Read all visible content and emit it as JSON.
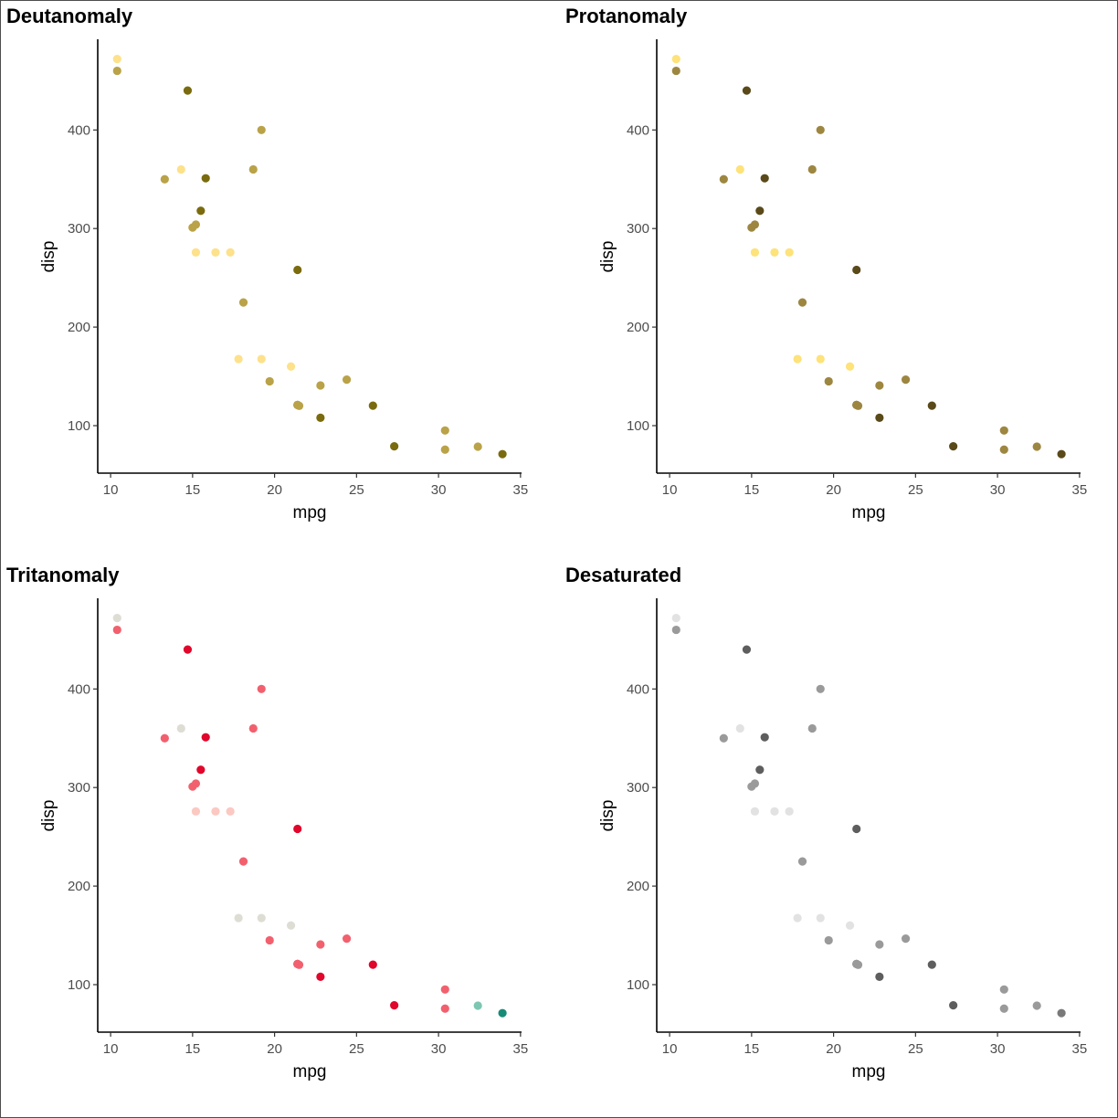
{
  "chart_data": [
    {
      "type": "scatter",
      "title": "Deutanomaly",
      "xlabel": "mpg",
      "ylabel": "disp",
      "xlim": [
        9.26,
        35.04
      ],
      "ylim": [
        50.0,
        491.0
      ],
      "x_ticks": [
        "10",
        "15",
        "20",
        "25",
        "30",
        "35"
      ],
      "y_ticks": [
        "100",
        "200",
        "300",
        "400"
      ],
      "grid": false,
      "legend": "none",
      "colors": [
        "#FDE18B",
        "#B9A248",
        "#7A6B0E",
        "#B9A248",
        "#FDE18B",
        "#7A6B0E",
        "#7A6B0E",
        "#B9A248",
        "#B9A248",
        "#B9A248",
        "#B9A248",
        "#FDE18B",
        "#FDE18B",
        "#FDE18B",
        "#FDE18B",
        "#FDE18B",
        "#FDE18B",
        "#7A6B0E",
        "#B9A248",
        "#7A6B0E",
        "#B9A248",
        "#B9A248",
        "#B9A248",
        "#7A6B0E",
        "#B9A248",
        "#7A6B0E",
        "#B9A248",
        "#B9A248",
        "#7A6B0E",
        "#B9A248",
        "#7A6B0E",
        "#B9A248"
      ]
    },
    {
      "type": "scatter",
      "title": "Protanomaly",
      "xlabel": "mpg",
      "ylabel": "disp",
      "xlim": [
        9.26,
        35.04
      ],
      "ylim": [
        50.0,
        491.0
      ],
      "x_ticks": [
        "10",
        "15",
        "20",
        "25",
        "30",
        "35"
      ],
      "y_ticks": [
        "100",
        "200",
        "300",
        "400"
      ],
      "grid": false,
      "legend": "none",
      "colors": [
        "#FEE27A",
        "#9D8640",
        "#5A4A1A",
        "#9D8640",
        "#FEE27A",
        "#5A4A1A",
        "#5A4A1A",
        "#9D8640",
        "#9D8640",
        "#9D8640",
        "#9D8640",
        "#FEE27A",
        "#FEE27A",
        "#FEE27A",
        "#FEE27A",
        "#FEE27A",
        "#FEE27A",
        "#5A4A1A",
        "#9D8640",
        "#5A4A1A",
        "#9D8640",
        "#9D8640",
        "#9D8640",
        "#5A4A1A",
        "#9D8640",
        "#5A4A1A",
        "#9D8640",
        "#9D8640",
        "#5A4A1A",
        "#9D8640",
        "#5A4A1A",
        "#9D8640"
      ]
    },
    {
      "type": "scatter",
      "title": "Tritanomaly",
      "xlabel": "mpg",
      "ylabel": "disp",
      "xlim": [
        9.26,
        35.04
      ],
      "ylim": [
        50.0,
        491.0
      ],
      "x_ticks": [
        "10",
        "15",
        "20",
        "25",
        "30",
        "35"
      ],
      "y_ticks": [
        "100",
        "200",
        "300",
        "400"
      ],
      "grid": false,
      "legend": "none",
      "colors": [
        "#DEDDD4",
        "#F2606E",
        "#E1062B",
        "#F2606E",
        "#DEDDD4",
        "#E1062B",
        "#E1062B",
        "#F2606E",
        "#F2606E",
        "#F2606E",
        "#F2606E",
        "#FBC9C1",
        "#FBC9C1",
        "#FBC9C1",
        "#DEDDD4",
        "#DEDDD4",
        "#DEDDD4",
        "#E1062B",
        "#F2606E",
        "#E1062B",
        "#F2606E",
        "#F2606E",
        "#F2606E",
        "#E1062B",
        "#F2606E",
        "#E1062B",
        "#F2606E",
        "#F2606E",
        "#E1062B",
        "#7DC6B1",
        "#168C77",
        "#F2606E"
      ]
    },
    {
      "type": "scatter",
      "title": "Desaturated",
      "xlabel": "mpg",
      "ylabel": "disp",
      "xlim": [
        9.26,
        35.04
      ],
      "ylim": [
        50.0,
        491.0
      ],
      "x_ticks": [
        "10",
        "15",
        "20",
        "25",
        "30",
        "35"
      ],
      "y_ticks": [
        "100",
        "200",
        "300",
        "400"
      ],
      "grid": false,
      "legend": "none",
      "colors": [
        "#E2E2E2",
        "#9A9A9A",
        "#5E5E5E",
        "#9A9A9A",
        "#E2E2E2",
        "#5E5E5E",
        "#5E5E5E",
        "#9A9A9A",
        "#9A9A9A",
        "#9A9A9A",
        "#9A9A9A",
        "#E2E2E2",
        "#E2E2E2",
        "#E2E2E2",
        "#E2E2E2",
        "#E2E2E2",
        "#E2E2E2",
        "#5E5E5E",
        "#9A9A9A",
        "#5E5E5E",
        "#9A9A9A",
        "#9A9A9A",
        "#9A9A9A",
        "#5E5E5E",
        "#9A9A9A",
        "#5E5E5E",
        "#9A9A9A",
        "#9A9A9A",
        "#5E5E5E",
        "#9A9A9A",
        "#797979",
        "#9A9A9A"
      ]
    }
  ],
  "points": {
    "x": [
      10.4,
      10.4,
      14.7,
      13.3,
      14.3,
      15.8,
      15.5,
      15.2,
      15.0,
      19.2,
      18.7,
      15.2,
      16.4,
      17.3,
      17.8,
      19.2,
      21.0,
      21.4,
      18.1,
      21.4,
      19.7,
      21.5,
      22.8,
      22.8,
      24.4,
      26.0,
      30.4,
      30.4,
      27.3,
      32.4,
      33.9,
      21.4
    ],
    "y": [
      472,
      460,
      440,
      350,
      360,
      351,
      318,
      304,
      301,
      400,
      360,
      275.8,
      275.8,
      275.8,
      167.6,
      167.6,
      160,
      258,
      225,
      121,
      145,
      120.1,
      140.8,
      108,
      146.7,
      120.3,
      95.1,
      75.7,
      79,
      78.7,
      71.1,
      121
    ]
  }
}
